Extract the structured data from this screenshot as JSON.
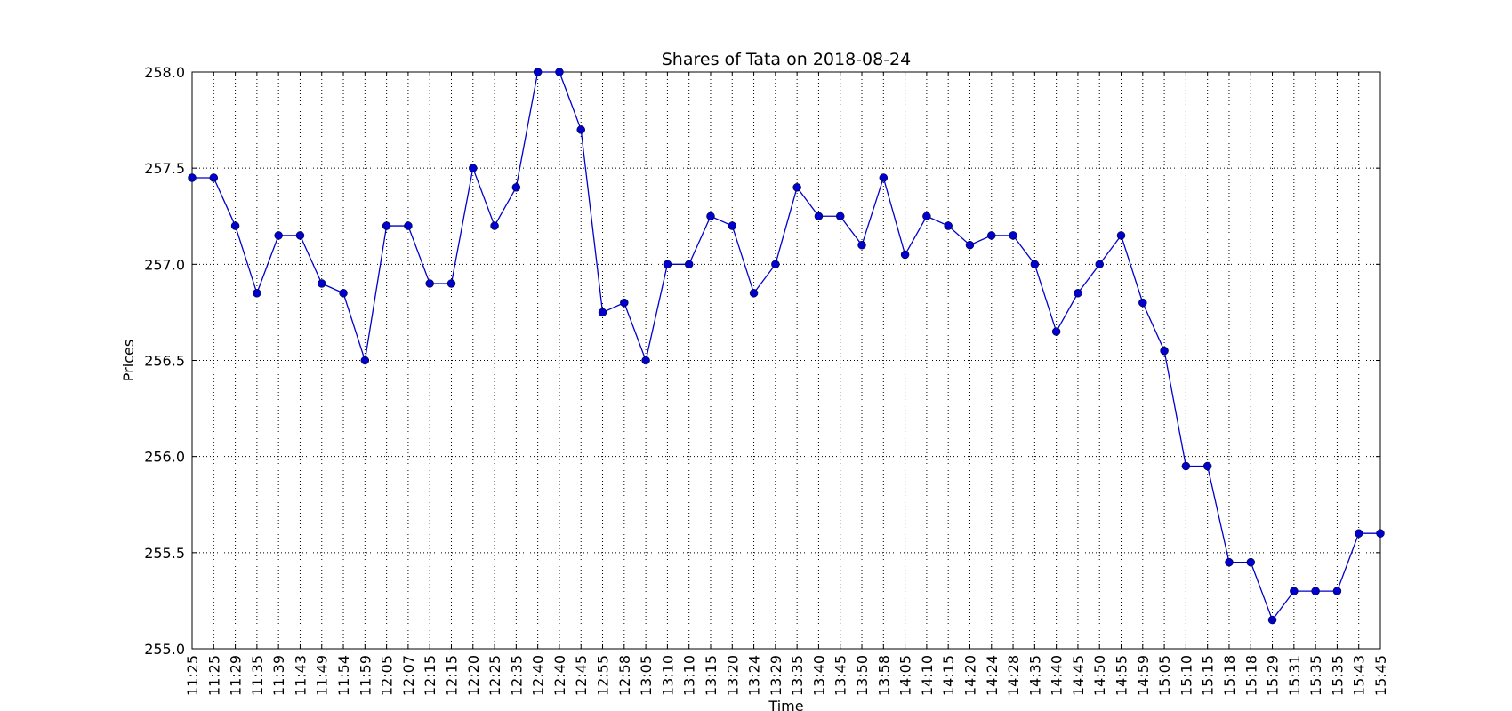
{
  "chart_data": {
    "type": "line",
    "title": "Shares of Tata on 2018-08-24",
    "xlabel": "Time",
    "ylabel": "Prices",
    "ylim": [
      255.0,
      258.0
    ],
    "yticks": [
      "255.0",
      "255.5",
      "256.0",
      "256.5",
      "257.0",
      "257.5",
      "258.0"
    ],
    "grid": true,
    "grid_style": "dotted",
    "line_color": "#0000cc",
    "marker_color": "#0000cc",
    "categories": [
      "11:25",
      "11:25",
      "11:29",
      "11:35",
      "11:39",
      "11:43",
      "11:49",
      "11:54",
      "11:59",
      "12:05",
      "12:07",
      "12:15",
      "12:15",
      "12:20",
      "12:25",
      "12:35",
      "12:40",
      "12:40",
      "12:45",
      "12:55",
      "12:58",
      "13:05",
      "13:10",
      "13:10",
      "13:15",
      "13:20",
      "13:24",
      "13:29",
      "13:35",
      "13:40",
      "13:45",
      "13:50",
      "13:58",
      "14:05",
      "14:10",
      "14:15",
      "14:20",
      "14:24",
      "14:28",
      "14:35",
      "14:40",
      "14:45",
      "14:50",
      "14:55",
      "14:59",
      "15:05",
      "15:10",
      "15:15",
      "15:18",
      "15:18",
      "15:29",
      "15:31",
      "15:35",
      "15:35",
      "15:43",
      "15:45"
    ],
    "series": [
      {
        "values": [
          257.45,
          257.45,
          257.2,
          256.85,
          257.15,
          257.15,
          256.9,
          256.85,
          256.5,
          257.2,
          257.2,
          256.9,
          256.9,
          257.5,
          257.2,
          257.4,
          258.0,
          258.0,
          257.7,
          256.75,
          256.8,
          256.5,
          257.0,
          257.0,
          257.25,
          257.2,
          256.85,
          257.0,
          257.4,
          257.25,
          257.25,
          257.1,
          257.45,
          257.05,
          257.25,
          257.2,
          257.1,
          257.15,
          257.15,
          257.0,
          256.65,
          256.85,
          257.0,
          257.15,
          256.8,
          256.55,
          255.95,
          255.95,
          255.45,
          255.45,
          255.15,
          255.3,
          255.3,
          255.3,
          255.6,
          255.6
        ]
      }
    ]
  }
}
